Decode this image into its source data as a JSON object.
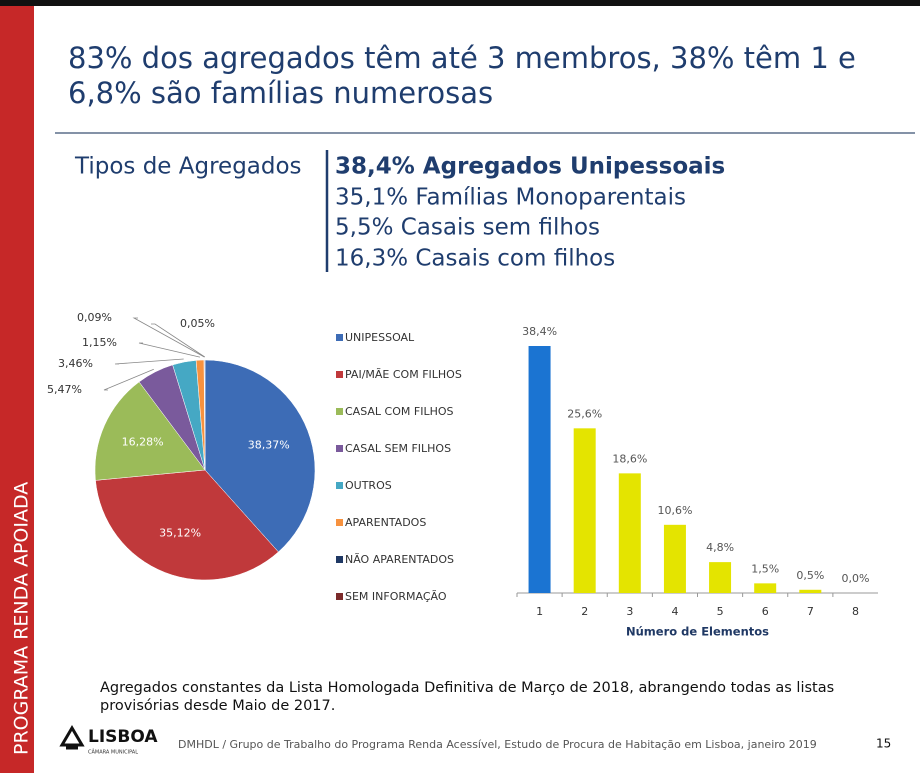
{
  "slide": {
    "title_lines": [
      "83% dos agregados têm até 3 membros, 38% têm 1 e",
      "6,8% são famílias numerosas"
    ],
    "side_label": "PROGRAMA RENDA APOIADA",
    "section_label": "Tipos de Agregados",
    "highlights": [
      "38,4% Agregados Unipessoais",
      "35,1% Famílias Monoparentais",
      "5,5% Casais sem filhos",
      "16,3% Casais com filhos"
    ],
    "note_lines": [
      "Agregados constantes da Lista Homologada Definitiva de Março de 2018, abrangendo todas as listas",
      "provisórias desde Maio de 2017."
    ],
    "logo": "LISBOA",
    "logo_sub": "CÂMARA MUNICIPAL",
    "footer": "DMHDL / Grupo de Trabalho do Programa Renda Acessível, Estudo de Procura de Habitação em Lisboa, janeiro 2019",
    "page_number": "15"
  },
  "chart_data": [
    {
      "type": "pie",
      "categories": [
        "UNIPESSOAL",
        "PAI/MÃE COM FILHOS",
        "CASAL COM FILHOS",
        "CASAL SEM FILHOS",
        "OUTROS",
        "APARENTADOS",
        "NÃO APARENTADOS",
        "SEM INFORMAÇÃO"
      ],
      "values": [
        38.37,
        35.12,
        16.28,
        5.47,
        3.46,
        1.15,
        0.09,
        0.05
      ],
      "value_labels": [
        "38,37%",
        "35,12%",
        "16,28%",
        "5,47%",
        "3,46%",
        "1,15%",
        "0,09%",
        "0,05%"
      ],
      "colors": [
        "#3d6cb6",
        "#c0393b",
        "#9bbb59",
        "#7a5a9c",
        "#45a8c4",
        "#f7923f",
        "#1f3864",
        "#7b2a2a"
      ]
    },
    {
      "type": "bar",
      "categories": [
        "1",
        "2",
        "3",
        "4",
        "5",
        "6",
        "7",
        "8"
      ],
      "values": [
        38.4,
        25.6,
        18.6,
        10.6,
        4.8,
        1.5,
        0.5,
        0.0
      ],
      "value_labels": [
        "38,4%",
        "25,6%",
        "18,6%",
        "10,6%",
        "4,8%",
        "1,5%",
        "0,5%",
        "0,0%"
      ],
      "colors": [
        "#1b74d2",
        "#e4e400",
        "#e4e400",
        "#e4e400",
        "#e4e400",
        "#e4e400",
        "#e4e400",
        "#e4e400"
      ],
      "x_label": "Número de Elementos"
    }
  ]
}
